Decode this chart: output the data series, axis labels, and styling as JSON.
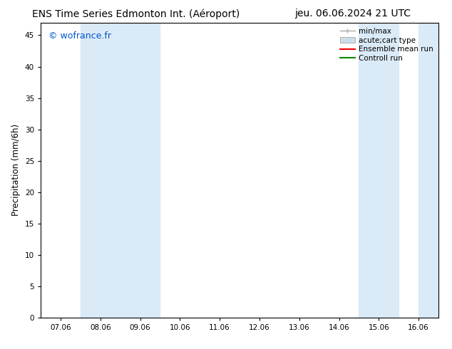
{
  "title_left": "ENS Time Series Edmonton Int. (Aéroport)",
  "title_right": "jeu. 06.06.2024 21 UTC",
  "ylabel": "Precipitation (mm/6h)",
  "watermark": "© wofrance.fr",
  "x_tick_labels": [
    "07.06",
    "08.06",
    "09.06",
    "10.06",
    "11.06",
    "12.06",
    "13.06",
    "14.06",
    "15.06",
    "16.06"
  ],
  "x_tick_values": [
    0,
    1,
    2,
    3,
    4,
    5,
    6,
    7,
    8,
    9
  ],
  "ylim": [
    0,
    47
  ],
  "xlim": [
    -0.5,
    9.5
  ],
  "yticks": [
    0,
    5,
    10,
    15,
    20,
    25,
    30,
    35,
    40,
    45
  ],
  "bg_color": "#ffffff",
  "plot_bg_color": "#ffffff",
  "shaded_bands": [
    {
      "x_start": 0.5,
      "x_end": 2.5,
      "color": "#daeaf7"
    },
    {
      "x_start": 7.5,
      "x_end": 8.5,
      "color": "#daeaf7"
    },
    {
      "x_start": 9.0,
      "x_end": 9.5,
      "color": "#daeaf7"
    }
  ],
  "legend_entries": [
    {
      "label": "min/max",
      "color": "#aaaaaa",
      "type": "errorbar"
    },
    {
      "label": "acute;cart type",
      "color": "#ccdde8",
      "type": "bar"
    },
    {
      "label": "Ensemble mean run",
      "color": "#ff0000",
      "type": "line"
    },
    {
      "label": "Controll run",
      "color": "#008800",
      "type": "line"
    }
  ],
  "title_fontsize": 10,
  "tick_fontsize": 7.5,
  "ylabel_fontsize": 8.5,
  "watermark_color": "#0055cc",
  "watermark_fontsize": 9,
  "legend_fontsize": 7.5
}
